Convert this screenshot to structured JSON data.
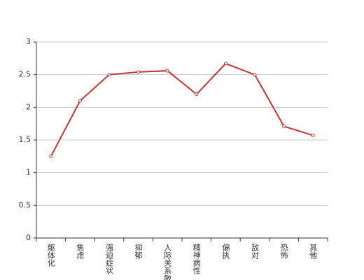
{
  "chart_data": {
    "type": "line",
    "categories": [
      "躯体化",
      "焦虑",
      "强迫症状",
      "抑郁",
      "人际关系敏感",
      "精神病性",
      "偏执",
      "敌对",
      "恐怖",
      "其他"
    ],
    "values": [
      1.25,
      2.1,
      2.5,
      2.54,
      2.56,
      2.2,
      2.67,
      2.5,
      1.71,
      1.57
    ],
    "color": "#c23531",
    "ylim": [
      0,
      3
    ],
    "yticks": [
      0,
      0.5,
      1,
      1.5,
      2,
      2.5,
      3
    ],
    "grid": true
  }
}
